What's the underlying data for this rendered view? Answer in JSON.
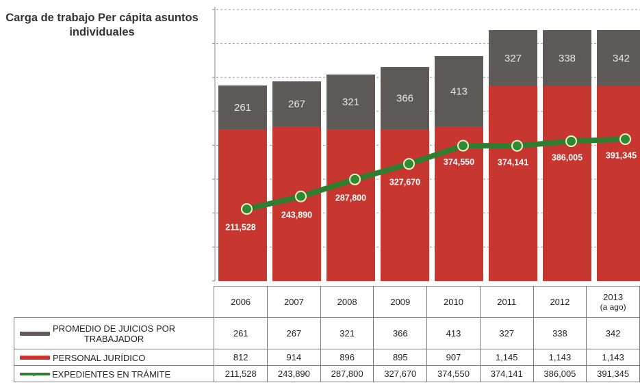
{
  "title": "Carga de trabajo Per cápita asuntos individuales",
  "colors": {
    "gray": "#5d5a58",
    "red": "#c7372f",
    "green": "#2f7d2f",
    "marker": "#2e8b2e"
  },
  "chart_data": {
    "type": "bar",
    "stacked": true,
    "categories": [
      "2006",
      "2007",
      "2008",
      "2009",
      "2010",
      "2011",
      "2012",
      "2013"
    ],
    "category_sublabels": [
      "",
      "",
      "",
      "",
      "",
      "",
      "",
      "(a ago)"
    ],
    "series": [
      {
        "name": "PROMEDIO DE JUICIOS POR TRABAJADOR",
        "kind": "bar",
        "color": "#5d5a58",
        "values": [
          261,
          267,
          321,
          366,
          413,
          327,
          338,
          342
        ],
        "labels": [
          "261",
          "267",
          "321",
          "366",
          "413",
          "327",
          "338",
          "342"
        ]
      },
      {
        "name": "PERSONAL JURÍDICO",
        "kind": "bar",
        "color": "#c7372f",
        "values": [
          812,
          914,
          896,
          895,
          907,
          1145,
          1143,
          1143
        ],
        "labels": [
          "812",
          "914",
          "896",
          "895",
          "907",
          "1,145",
          "1,143",
          "1,143"
        ]
      },
      {
        "name": "EXPEDIENTES EN TRÁMITE",
        "kind": "line",
        "color": "#2f7d2f",
        "values": [
          211528,
          243890,
          287800,
          327670,
          374550,
          374141,
          386005,
          391345
        ],
        "labels": [
          "211,528",
          "243,890",
          "287,800",
          "327,670",
          "374,550",
          "374,141",
          "386,005",
          "391,345"
        ]
      }
    ],
    "grid": true
  },
  "table": {
    "rows": [
      {
        "label_lines": [
          "PROMEDIO DE JUICIOS POR",
          "TRABAJADOR"
        ]
      },
      {
        "label_lines": [
          "PERSONAL JURÍDICO"
        ]
      },
      {
        "label_lines": [
          "EXPEDIENTES EN TRÁMITE"
        ]
      }
    ]
  }
}
